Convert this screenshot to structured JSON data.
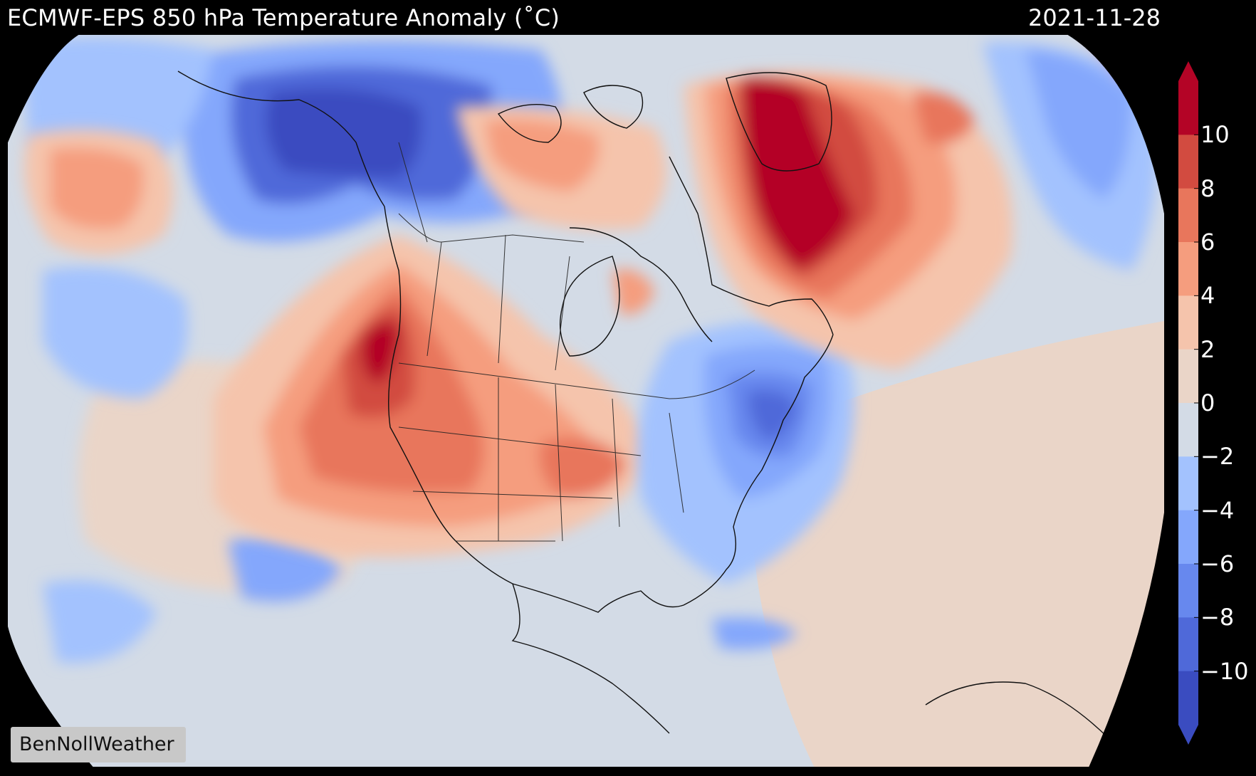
{
  "header": {
    "title": "ECMWF-EPS 850 hPa Temperature Anomaly (˚C)",
    "date": "2021-11-28"
  },
  "map": {
    "variable": "850 hPa Temperature Anomaly",
    "units": "˚C",
    "region": "North America",
    "palette": {
      "n10": "#3a4cc0",
      "n8": "#4f69d9",
      "n6": "#6788ee",
      "n4": "#84a7fc",
      "n2": "#a3c2fe",
      "zero_neg": "#d3dbe6",
      "zero_pos": "#ead5c8",
      "p2": "#f5c4ac",
      "p4": "#f59d7e",
      "p6": "#e8765c",
      "p8": "#d24b40",
      "p10": "#b40426"
    }
  },
  "colorbar": {
    "ticks": [
      "10",
      "8",
      "6",
      "4",
      "2",
      "0",
      "−2",
      "−4",
      "−6",
      "−8",
      "−10"
    ],
    "colors": [
      "#b40426",
      "#d24b40",
      "#e8765c",
      "#f59d7e",
      "#f5c4ac",
      "#ead5c8",
      "#d3dbe6",
      "#a3c2fe",
      "#84a7fc",
      "#6788ee",
      "#4f69d9",
      "#3a4cc0"
    ],
    "extend": "both"
  },
  "credit": {
    "label": "BenNollWeather"
  }
}
